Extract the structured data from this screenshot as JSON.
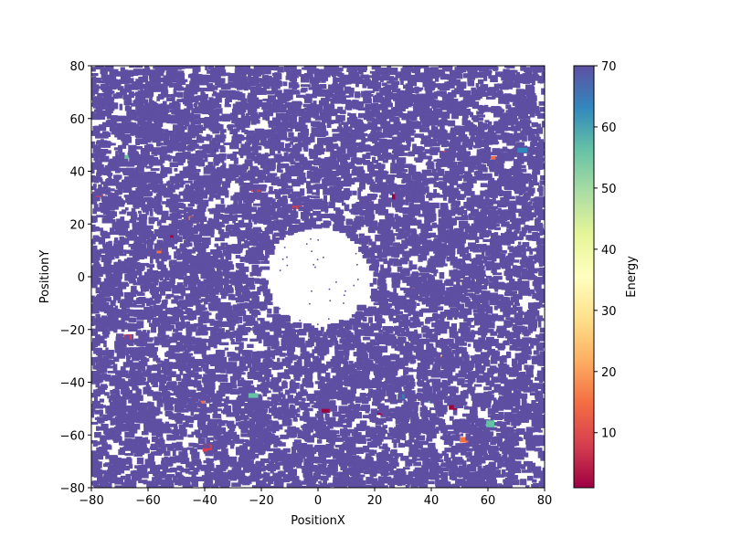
{
  "chart_data": {
    "type": "scatter",
    "title": "",
    "xlabel": "PositionX",
    "ylabel": "PositionY",
    "xlim": [
      -80,
      80
    ],
    "ylim": [
      -80,
      80
    ],
    "xticks": [
      -80,
      -60,
      -40,
      -20,
      0,
      20,
      40,
      60,
      80
    ],
    "yticks": [
      -80,
      -60,
      -40,
      -20,
      0,
      20,
      40,
      60,
      80
    ],
    "grid": false,
    "colorbar": {
      "label": "Energy",
      "colormap": "Spectral",
      "range": [
        1,
        70
      ],
      "ticks": [
        10,
        20,
        30,
        40,
        50,
        60,
        70
      ]
    },
    "distribution": {
      "dense_region": {
        "xrange": [
          -80,
          80
        ],
        "yrange": [
          -80,
          80
        ],
        "typical_energy": 70
      },
      "sparse_disk": {
        "center": [
          0,
          0
        ],
        "radius": 19
      },
      "low_energy_fraction": 0.004
    }
  }
}
